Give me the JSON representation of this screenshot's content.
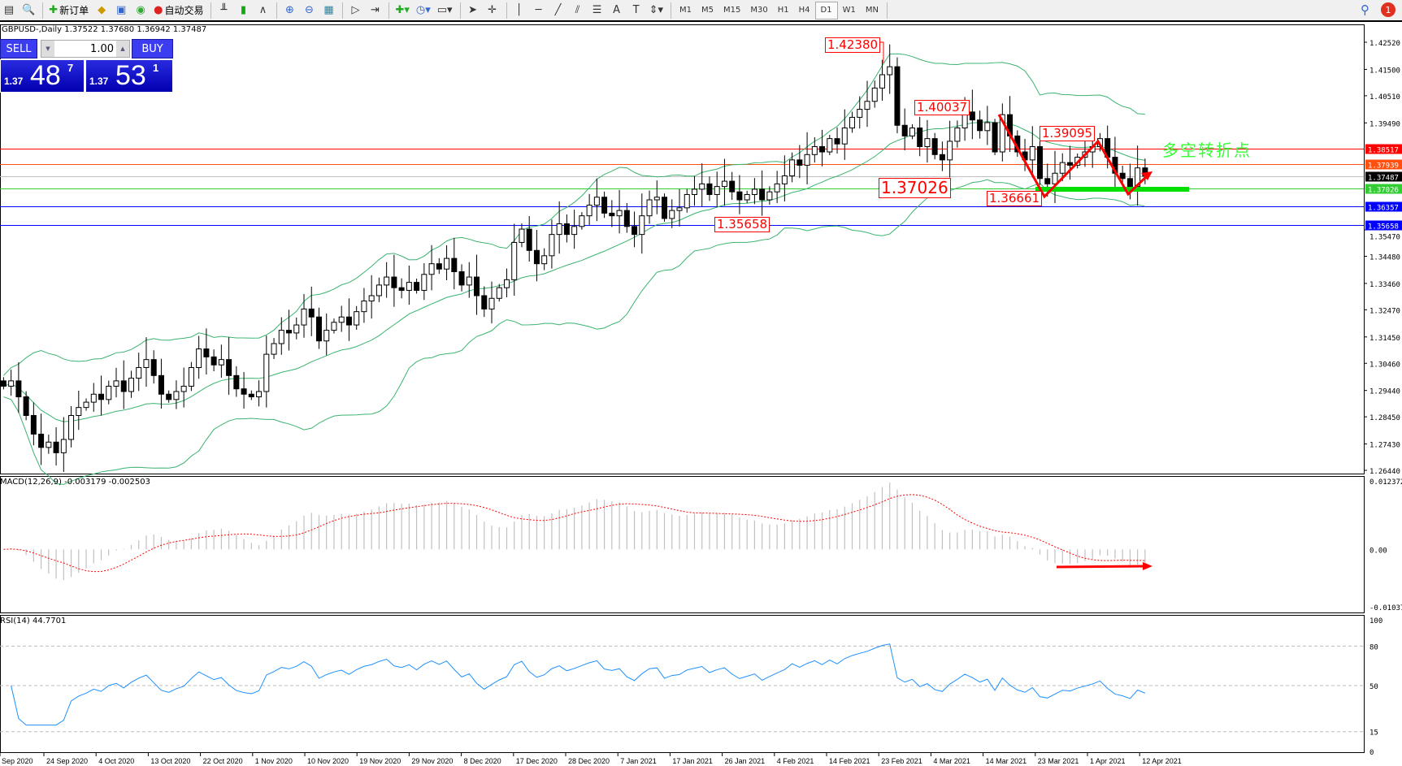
{
  "toolbar": {
    "new_order": "新订单",
    "auto_trading": "自动交易",
    "timeframes": [
      "M1",
      "M5",
      "M15",
      "M30",
      "H1",
      "H4",
      "D1",
      "W1",
      "MN"
    ],
    "active_timeframe": "D1",
    "notifications": "1"
  },
  "chart_info": "GBPUSD-,Daily  1.37522 1.37680 1.36942 1.37487",
  "trade_panel": {
    "sell": "SELL",
    "buy": "BUY",
    "lot": "1.00",
    "sell_small": "1.37",
    "sell_big": "48",
    "sell_pip": "7",
    "buy_small": "1.37",
    "buy_big": "53",
    "buy_pip": "1"
  },
  "annotations": {
    "high": "1.42380",
    "h2": "1.40037",
    "h3": "1.39095",
    "low1": "1.36661",
    "support": "1.37026",
    "low0": "1.35658",
    "pivot_text": "多空转折点"
  },
  "colors": {
    "bull_bear_candle": "#000000",
    "bands": "#3cb371",
    "arrow": "#ff0000",
    "support_bar": "#00e000",
    "rsi": "#1e90ff",
    "signal": "#ff0000",
    "hist": "#c0c0c0"
  },
  "price_axis": [
    "1.42520",
    "1.41500",
    "1.40510",
    "1.39490",
    "1.35470",
    "1.34480",
    "1.33460",
    "1.32470",
    "1.31450",
    "1.30460",
    "1.29440",
    "1.28450",
    "1.27430",
    "1.26440"
  ],
  "hlines": [
    {
      "price": "1.38517",
      "color": "#ff0000"
    },
    {
      "price": "1.37939",
      "color": "#ff5010"
    },
    {
      "price": "1.37487",
      "color": "#000000",
      "line": "#c0c0c0"
    },
    {
      "price": "1.37026",
      "color": "#32cd32"
    },
    {
      "price": "1.36357",
      "color": "#0000ff"
    },
    {
      "price": "1.35658",
      "color": "#0000ff"
    }
  ],
  "macd": {
    "label": "MACD(12,26,9) -0.003179 -0.002503",
    "axis": [
      "0.012372",
      "0.00",
      "-0.010374"
    ]
  },
  "rsi": {
    "label": "RSI(14) 44.7701",
    "axis": [
      "100",
      "80",
      "50",
      "15",
      "0"
    ]
  },
  "time_axis": [
    "Sep 2020",
    "24 Sep 2020",
    "4 Oct 2020",
    "13 Oct 2020",
    "22 Oct 2020",
    "1 Nov 2020",
    "10 Nov 2020",
    "19 Nov 2020",
    "29 Nov 2020",
    "8 Dec 2020",
    "17 Dec 2020",
    "28 Dec 2020",
    "7 Jan 2021",
    "17 Jan 2021",
    "26 Jan 2021",
    "4 Feb 2021",
    "14 Feb 2021",
    "23 Feb 2021",
    "4 Mar 2021",
    "14 Mar 2021",
    "23 Mar 2021",
    "1 Apr 2021",
    "12 Apr 2021"
  ],
  "chart_data": {
    "type": "candlestick",
    "symbol": "GBPUSD",
    "period": "Daily",
    "ylim": [
      1.2644,
      1.4252
    ],
    "close": [
      1.296,
      1.298,
      1.292,
      1.285,
      1.278,
      1.273,
      1.275,
      1.271,
      1.276,
      1.285,
      1.288,
      1.29,
      1.293,
      1.291,
      1.296,
      1.298,
      1.294,
      1.299,
      1.303,
      1.306,
      1.3,
      1.293,
      1.291,
      1.294,
      1.296,
      1.303,
      1.31,
      1.307,
      1.304,
      1.306,
      1.3,
      1.295,
      1.293,
      1.292,
      1.294,
      1.308,
      1.312,
      1.317,
      1.316,
      1.319,
      1.325,
      1.322,
      1.313,
      1.317,
      1.32,
      1.322,
      1.319,
      1.324,
      1.328,
      1.33,
      1.334,
      1.337,
      1.333,
      1.332,
      1.335,
      1.332,
      1.338,
      1.342,
      1.34,
      1.344,
      1.339,
      1.334,
      1.337,
      1.33,
      1.325,
      1.329,
      1.333,
      1.336,
      1.35,
      1.355,
      1.347,
      1.342,
      1.345,
      1.353,
      1.357,
      1.353,
      1.356,
      1.36,
      1.364,
      1.367,
      1.361,
      1.36,
      1.362,
      1.356,
      1.353,
      1.36,
      1.366,
      1.367,
      1.359,
      1.362,
      1.363,
      1.368,
      1.37,
      1.372,
      1.368,
      1.371,
      1.373,
      1.369,
      1.366,
      1.368,
      1.37,
      1.366,
      1.369,
      1.372,
      1.375,
      1.381,
      1.379,
      1.383,
      1.386,
      1.384,
      1.389,
      1.387,
      1.393,
      1.397,
      1.4,
      1.403,
      1.408,
      1.413,
      1.416,
      1.394,
      1.39,
      1.393,
      1.386,
      1.389,
      1.383,
      1.381,
      1.388,
      1.393,
      1.399,
      1.396,
      1.392,
      1.395,
      1.384,
      1.398,
      1.39,
      1.384,
      1.381,
      1.386,
      1.374,
      1.372,
      1.376,
      1.38,
      1.379,
      1.382,
      1.384,
      1.386,
      1.389,
      1.382,
      1.376,
      1.374,
      1.371,
      1.378,
      1.37487
    ],
    "indicators": [
      "Bollinger Bands(20,2)",
      "MACD(12,26,9)",
      "RSI(14)"
    ]
  }
}
